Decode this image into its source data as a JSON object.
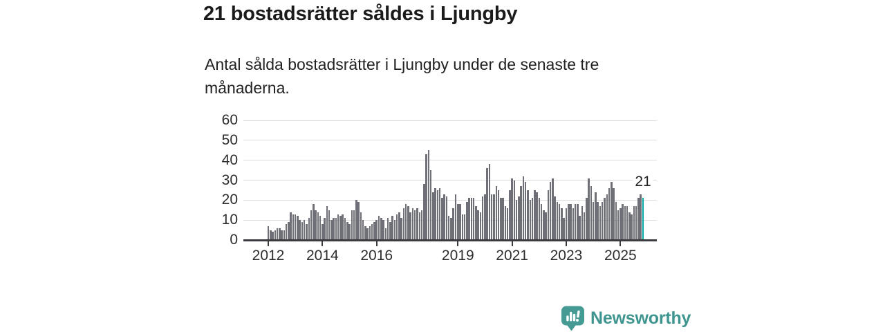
{
  "header": {
    "title": "21 bostadsrätter såldes i Ljungby",
    "subtitle": "Antal sålda bostadsrätter i Ljungby under de senaste tre månaderna."
  },
  "chart_data": {
    "type": "bar",
    "title": "21 bostadsrätter såldes i Ljungby",
    "xlabel": "",
    "ylabel": "",
    "x_unit": "month",
    "x_start": "2012-01",
    "x_end": "2025-11",
    "grid": "horizontal",
    "legend": "none",
    "y_axis": {
      "range": [
        0,
        60
      ],
      "ticks": [
        0,
        10,
        20,
        30,
        40,
        50,
        60
      ]
    },
    "x_axis": {
      "ticks": [
        {
          "label": "2012",
          "month_index": 0
        },
        {
          "label": "2014",
          "month_index": 24
        },
        {
          "label": "2016",
          "month_index": 48
        },
        {
          "label": "2019",
          "month_index": 84
        },
        {
          "label": "2021",
          "month_index": 108
        },
        {
          "label": "2023",
          "month_index": 132
        },
        {
          "label": "2025",
          "month_index": 156
        }
      ]
    },
    "values": [
      7,
      5,
      4,
      5,
      6,
      6,
      5,
      5,
      8,
      9,
      14,
      13,
      13,
      12,
      10,
      9,
      10,
      8,
      11,
      15,
      18,
      15,
      14,
      12,
      8,
      11,
      17,
      15,
      10,
      11,
      11,
      13,
      12,
      13,
      11,
      9,
      8,
      15,
      15,
      20,
      19,
      14,
      10,
      7,
      6,
      7,
      8,
      9,
      10,
      12,
      11,
      10,
      6,
      11,
      9,
      12,
      10,
      13,
      14,
      11,
      16,
      18,
      17,
      14,
      16,
      15,
      16,
      14,
      15,
      28,
      43,
      45,
      35,
      24,
      26,
      25,
      26,
      21,
      23,
      22,
      12,
      11,
      16,
      23,
      18,
      18,
      13,
      13,
      19,
      21,
      21,
      21,
      17,
      15,
      14,
      22,
      23,
      36,
      38,
      23,
      23,
      27,
      25,
      21,
      21,
      17,
      16,
      25,
      31,
      30,
      20,
      22,
      27,
      32,
      29,
      25,
      20,
      21,
      25,
      24,
      21,
      18,
      15,
      14,
      25,
      29,
      31,
      22,
      19,
      18,
      16,
      11,
      16,
      18,
      18,
      16,
      18,
      18,
      12,
      17,
      14,
      21,
      31,
      27,
      19,
      24,
      19,
      17,
      19,
      21,
      23,
      26,
      29,
      26,
      19,
      15,
      16,
      18,
      17,
      17,
      14,
      13,
      17,
      17,
      21,
      23,
      21
    ],
    "highlight": {
      "index": 166,
      "value": 21,
      "label": "21",
      "color": "#00a69f"
    },
    "bar_color": "#6f6f78",
    "colors": {
      "text": "#1b1b1b",
      "axis_labels": "#2d2d2d",
      "gridline": "#dcdcdc",
      "axis_line": "#3a3a3f",
      "bar": "#6f6f78",
      "highlight": "#00a69f"
    }
  },
  "footer": {
    "brand": "Newsworthy",
    "brand_color": "#3e948e",
    "icon": "newsworthy-speech-bubble-chart-icon",
    "icon_color": "#459a94"
  }
}
